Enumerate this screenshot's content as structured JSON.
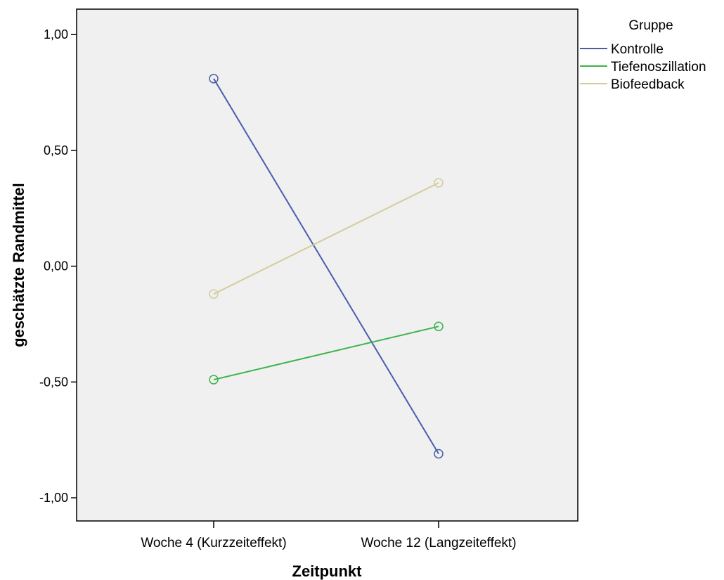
{
  "chart_data": {
    "type": "line",
    "title": "",
    "xlabel": "Zeitpunkt",
    "ylabel": "geschätzte Randmittel",
    "categories": [
      "Woche 4 (Kurzzeiteffekt)",
      "Woche 12 (Langzeiteffekt)"
    ],
    "ylim": [
      -1.1,
      1.11
    ],
    "yticks": [
      1.0,
      0.5,
      0.0,
      -0.5,
      -1.0
    ],
    "ytick_labels": [
      "1,00",
      "0,50",
      "0,00",
      "-0,50",
      "-1,00"
    ],
    "grid": false,
    "legend": {
      "title": "Gruppe",
      "placement": "right"
    },
    "series": [
      {
        "name": "Kontrolle",
        "color": "#4a5ea8",
        "values": [
          0.81,
          -0.81
        ]
      },
      {
        "name": "Tiefenoszillation",
        "color": "#3cb44a",
        "values": [
          -0.49,
          -0.26
        ]
      },
      {
        "name": "Biofeedback",
        "color": "#d3cd9c",
        "values": [
          -0.12,
          0.36
        ]
      }
    ],
    "marker": "circle",
    "plot_background": "#f0f0f0"
  }
}
